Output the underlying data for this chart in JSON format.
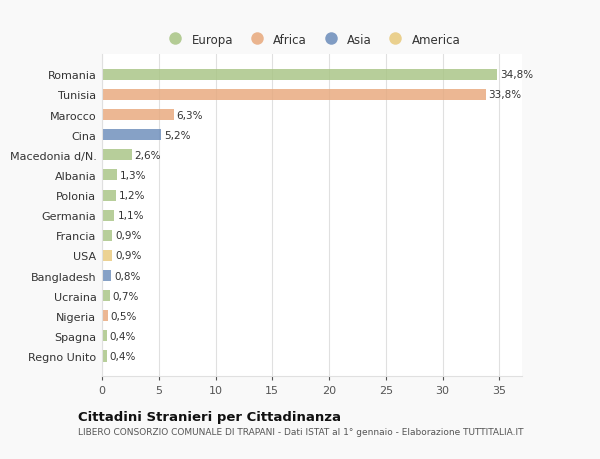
{
  "categories": [
    "Romania",
    "Tunisia",
    "Marocco",
    "Cina",
    "Macedonia d/N.",
    "Albania",
    "Polonia",
    "Germania",
    "Francia",
    "USA",
    "Bangladesh",
    "Ucraina",
    "Nigeria",
    "Spagna",
    "Regno Unito"
  ],
  "values": [
    34.8,
    33.8,
    6.3,
    5.2,
    2.6,
    1.3,
    1.2,
    1.1,
    0.9,
    0.9,
    0.8,
    0.7,
    0.5,
    0.4,
    0.4
  ],
  "labels": [
    "34,8%",
    "33,8%",
    "6,3%",
    "5,2%",
    "2,6%",
    "1,3%",
    "1,2%",
    "1,1%",
    "0,9%",
    "0,9%",
    "0,8%",
    "0,7%",
    "0,5%",
    "0,4%",
    "0,4%"
  ],
  "colors": [
    "#a8c484",
    "#e8a87c",
    "#e8a87c",
    "#6b8cba",
    "#a8c484",
    "#a8c484",
    "#a8c484",
    "#a8c484",
    "#a8c484",
    "#e8c97c",
    "#6b8cba",
    "#a8c484",
    "#e8a87c",
    "#a8c484",
    "#a8c484"
  ],
  "legend_labels": [
    "Europa",
    "Africa",
    "Asia",
    "America"
  ],
  "legend_colors": [
    "#a8c484",
    "#e8a87c",
    "#6b8cba",
    "#e8c97c"
  ],
  "title": "Cittadini Stranieri per Cittadinanza",
  "subtitle": "LIBERO CONSORZIO COMUNALE DI TRAPANI - Dati ISTAT al 1° gennaio - Elaborazione TUTTITALIA.IT",
  "xlim": [
    0,
    37
  ],
  "xticks": [
    0,
    5,
    10,
    15,
    20,
    25,
    30,
    35
  ],
  "background_color": "#f9f9f9",
  "plot_bg_color": "#ffffff",
  "bar_height": 0.55,
  "grid_color": "#e0e0e0"
}
